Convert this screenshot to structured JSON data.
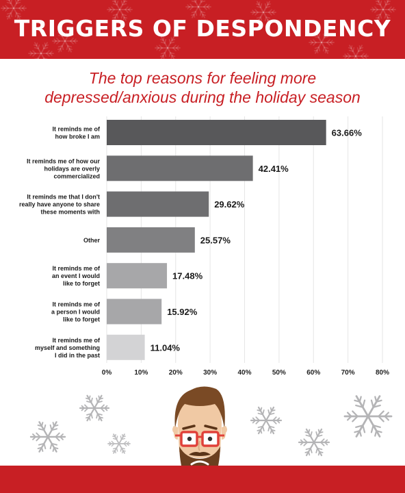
{
  "header": {
    "title": "TRIGGERS OF DESPONDENCY"
  },
  "subtitle": {
    "line1": "The top reasons for feeling more",
    "line2": "depressed/anxious during the holiday season"
  },
  "colors": {
    "brand_red": "#c81f24",
    "bar_dark": "#58585a",
    "bar_mid": "#6e6e70",
    "bar_gray": "#808082",
    "bar_light": "#a7a7a9",
    "bar_lightest": "#d3d3d5"
  },
  "chart_data": {
    "type": "bar",
    "orientation": "horizontal",
    "categories": [
      [
        "It reminds me of",
        "how broke I am"
      ],
      [
        "It reminds me of how our",
        "holidays are overly",
        "commercialized"
      ],
      [
        "It reminds me that I don't",
        "really have anyone to share",
        "these moments with"
      ],
      [
        "Other"
      ],
      [
        "It reminds me of",
        "an event I would",
        "like to forget"
      ],
      [
        "It reminds me of",
        "a person I would",
        "like to forget"
      ],
      [
        "It reminds me of",
        "myself and something",
        "I did in the past"
      ]
    ],
    "values": [
      63.66,
      42.41,
      29.62,
      25.57,
      17.48,
      15.92,
      11.04
    ],
    "value_labels": [
      "63.66%",
      "42.41%",
      "29.62%",
      "25.57%",
      "17.48%",
      "15.92%",
      "11.04%"
    ],
    "bar_colors": [
      "#58585a",
      "#6e6e70",
      "#6e6e70",
      "#808082",
      "#a7a7a9",
      "#a7a7a9",
      "#d3d3d5"
    ],
    "x_ticks": [
      0,
      10,
      20,
      30,
      40,
      50,
      60,
      70,
      80
    ],
    "x_tick_labels": [
      "0%",
      "10%",
      "20%",
      "30%",
      "40%",
      "50%",
      "60%",
      "70%",
      "80%"
    ],
    "xlim": [
      0,
      80
    ],
    "grid": true,
    "title": "The top reasons for feeling more depressed/anxious during the holiday season"
  }
}
